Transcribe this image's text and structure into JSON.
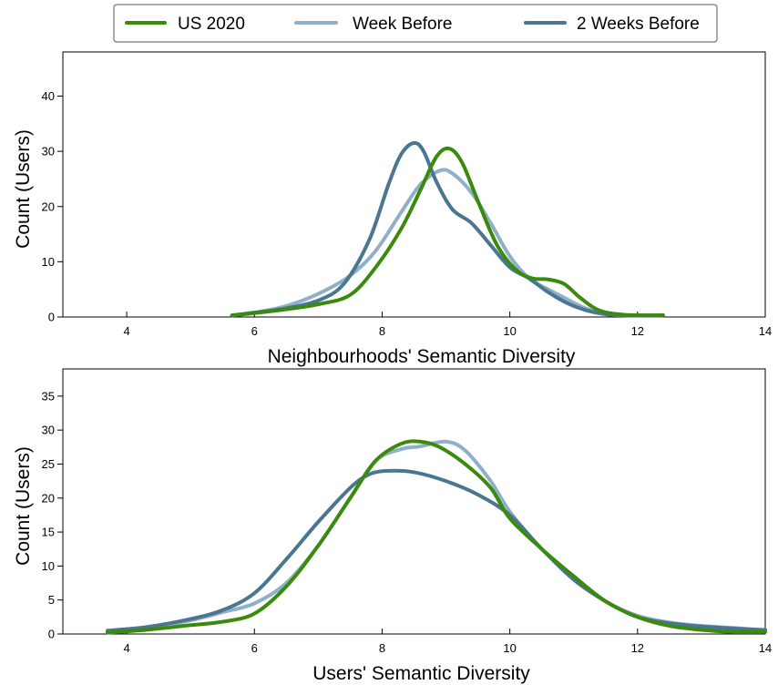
{
  "legend": {
    "position": "top-center",
    "entries": [
      {
        "label": "US 2020",
        "color": "#3a8a0c"
      },
      {
        "label": "Week Before",
        "color": "#8fb0c8"
      },
      {
        "label": "2 Weeks Before",
        "color": "#4a7692"
      }
    ]
  },
  "chart_data": [
    {
      "type": "line",
      "xlabel": "Neighbourhoods' Semantic Diversity",
      "ylabel": "Count (Users)",
      "xlim": [
        3,
        14
      ],
      "ylim": [
        0,
        48
      ],
      "xticks": [
        4,
        6,
        8,
        10,
        12,
        14
      ],
      "yticks": [
        0,
        10,
        20,
        30,
        40
      ],
      "series": [
        {
          "name": "US 2020",
          "color": "#3a8a0c",
          "x": [
            5.65,
            6.0,
            6.5,
            7.0,
            7.5,
            7.9,
            8.3,
            8.6,
            8.85,
            9.05,
            9.25,
            9.5,
            9.8,
            10.1,
            10.35,
            10.6,
            10.85,
            11.1,
            11.4,
            11.8,
            12.4
          ],
          "y": [
            0.3,
            0.7,
            1.4,
            2.3,
            4.0,
            9.0,
            16.0,
            23.0,
            29.0,
            30.5,
            28.0,
            21.0,
            13.0,
            8.5,
            7.0,
            6.8,
            6.0,
            3.5,
            1.2,
            0.4,
            0.3
          ]
        },
        {
          "name": "Week Before",
          "color": "#8fb0c8",
          "x": [
            5.65,
            6.0,
            6.5,
            7.0,
            7.5,
            7.9,
            8.3,
            8.6,
            8.9,
            9.1,
            9.4,
            9.7,
            10.0,
            10.3,
            10.6,
            10.9,
            11.2,
            11.5,
            11.8,
            12.4
          ],
          "y": [
            0.3,
            0.8,
            2.0,
            4.2,
            7.5,
            12.0,
            19.0,
            24.0,
            26.5,
            26.0,
            22.5,
            17.0,
            11.0,
            7.0,
            5.0,
            3.2,
            1.5,
            0.6,
            0.3,
            0.3
          ]
        },
        {
          "name": "2 Weeks Before",
          "color": "#4a7692",
          "x": [
            5.65,
            6.0,
            6.5,
            7.0,
            7.4,
            7.8,
            8.1,
            8.3,
            8.5,
            8.65,
            8.85,
            9.1,
            9.4,
            9.7,
            10.0,
            10.3,
            10.6,
            10.9,
            11.2,
            11.5,
            11.8,
            12.4
          ],
          "y": [
            0.3,
            0.8,
            1.6,
            3.0,
            6.0,
            14.0,
            24.0,
            29.5,
            31.5,
            30.0,
            24.5,
            19.5,
            17.0,
            13.0,
            9.0,
            7.0,
            4.5,
            2.5,
            1.2,
            0.5,
            0.3,
            0.3
          ]
        }
      ]
    },
    {
      "type": "line",
      "xlabel": "Users' Semantic Diversity",
      "ylabel": "Count (Users)",
      "xlim": [
        3,
        14
      ],
      "ylim": [
        0,
        39
      ],
      "xticks": [
        4,
        6,
        8,
        10,
        12,
        14
      ],
      "yticks": [
        0,
        5,
        10,
        15,
        20,
        25,
        30,
        35
      ],
      "series": [
        {
          "name": "US 2020",
          "color": "#3a8a0c",
          "x": [
            3.7,
            4.3,
            5.0,
            5.5,
            6.0,
            6.5,
            7.0,
            7.5,
            7.9,
            8.3,
            8.6,
            8.9,
            9.3,
            9.7,
            10.0,
            10.5,
            11.0,
            11.5,
            12.0,
            12.5,
            13.0,
            13.5,
            14.0
          ],
          "y": [
            0.2,
            0.6,
            1.3,
            1.8,
            3.0,
            7.0,
            13.0,
            20.0,
            25.5,
            28.0,
            28.3,
            27.5,
            25.0,
            21.5,
            17.0,
            12.5,
            8.5,
            4.8,
            2.5,
            1.2,
            0.6,
            0.3,
            0.3
          ]
        },
        {
          "name": "Week Before",
          "color": "#8fb0c8",
          "x": [
            3.7,
            4.3,
            5.0,
            5.5,
            6.0,
            6.5,
            7.0,
            7.5,
            7.9,
            8.3,
            8.6,
            9.0,
            9.3,
            9.7,
            10.0,
            10.5,
            11.0,
            11.5,
            12.0,
            12.5,
            13.0,
            13.5,
            14.0
          ],
          "y": [
            0.3,
            0.8,
            2.0,
            3.2,
            4.5,
            7.5,
            13.0,
            20.0,
            25.5,
            27.2,
            27.6,
            28.3,
            27.0,
            22.5,
            18.0,
            12.5,
            8.3,
            4.8,
            2.7,
            1.7,
            1.2,
            0.9,
            0.5
          ]
        },
        {
          "name": "2 Weeks Before",
          "color": "#4a7692",
          "x": [
            3.7,
            4.3,
            5.0,
            5.5,
            6.0,
            6.5,
            7.0,
            7.5,
            7.8,
            8.1,
            8.5,
            9.0,
            9.5,
            10.0,
            10.5,
            11.0,
            11.5,
            12.0,
            12.5,
            13.0,
            13.5,
            14.0
          ],
          "y": [
            0.5,
            1.0,
            2.2,
            3.5,
            6.0,
            11.0,
            16.5,
            21.5,
            23.5,
            24.0,
            23.8,
            22.5,
            20.5,
            17.5,
            12.5,
            8.0,
            4.8,
            2.5,
            1.6,
            1.1,
            0.8,
            0.6
          ]
        }
      ]
    }
  ]
}
